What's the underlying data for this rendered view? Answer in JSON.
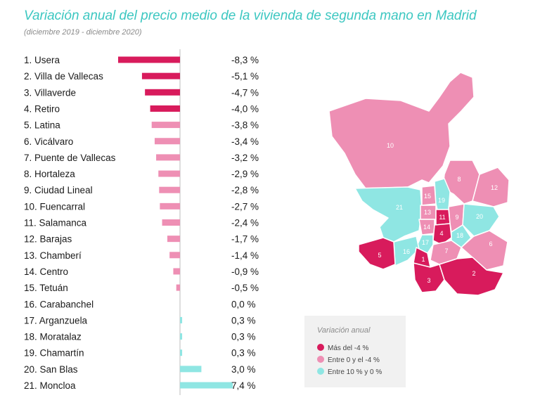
{
  "title": "Variación anual del precio medio de la vivienda de segunda mano en Madrid",
  "subtitle": "(diciembre 2019 - diciembre 2020)",
  "colors": {
    "high_decline": "#d81b5c",
    "mid_decline": "#ee8fb4",
    "increase": "#8fe6e3",
    "title": "#3cc7c1"
  },
  "chart_data": {
    "type": "bar",
    "orientation": "horizontal",
    "categories": [
      "1. Usera",
      "2. Villa de Vallecas",
      "3. Villaverde",
      "4. Retiro",
      "5. Latina",
      "6. Vicálvaro",
      "7. Puente de Vallecas",
      "8. Hortaleza",
      "9. Ciudad Lineal",
      "10. Fuencarral",
      "11. Salamanca",
      "12. Barajas",
      "13. Chamberí",
      "14. Centro",
      "15. Tetuán",
      "16. Carabanchel",
      "17. Arganzuela",
      "18. Moratalaz",
      "19. Chamartín",
      "20. San Blas",
      "21. Moncloa"
    ],
    "values": [
      -8.3,
      -5.1,
      -4.7,
      -4.0,
      -3.8,
      -3.4,
      -3.2,
      -2.9,
      -2.8,
      -2.7,
      -2.4,
      -1.7,
      -1.4,
      -0.9,
      -0.5,
      0.0,
      0.3,
      0.3,
      0.3,
      3.0,
      7.4
    ],
    "value_labels": [
      "-8,3 %",
      "-5,1 %",
      "-4,7 %",
      "-4,0 %",
      "-3,8 %",
      "-3,4 %",
      "-3,2 %",
      "-2,9 %",
      "-2,8 %",
      "-2,7 %",
      "-2,4 %",
      "-1,7 %",
      "-1,4 %",
      "-0,9 %",
      "-0,5 %",
      "0,0 %",
      "0,3 %",
      "0,3 %",
      "0,3 %",
      "3,0 %",
      "7,4 %"
    ],
    "categories_class": [
      "high",
      "high",
      "high",
      "high",
      "mid",
      "mid",
      "mid",
      "mid",
      "mid",
      "mid",
      "mid",
      "mid",
      "mid",
      "mid",
      "mid",
      "low",
      "low",
      "low",
      "low",
      "low",
      "low"
    ],
    "xlim": [
      -8.3,
      7.4
    ]
  },
  "legend": {
    "title": "Variación anual",
    "items": [
      {
        "label": "Más del -4 %",
        "color": "#d81b5c"
      },
      {
        "label": "Entre 0 y el -4 %",
        "color": "#ee8fb4"
      },
      {
        "label": "Entre 10 % y 0 %",
        "color": "#8fe6e3"
      }
    ]
  },
  "map": {
    "district_labels": [
      "1",
      "2",
      "3",
      "4",
      "5",
      "6",
      "7",
      "8",
      "9",
      "10",
      "11",
      "12",
      "13",
      "14",
      "15",
      "16",
      "17",
      "18",
      "19",
      "20",
      "21"
    ]
  }
}
